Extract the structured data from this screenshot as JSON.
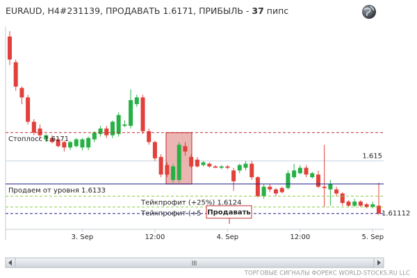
{
  "chart_data": {
    "type": "candlestick",
    "title_parts": [
      "EURAUD, H4#231139, ПРОДАВАТЬ 1.6171, ПРИБЫЛЬ - ",
      "37",
      " пипс"
    ],
    "categories": [
      null,
      null,
      null,
      null,
      null,
      null,
      null,
      null,
      null,
      null,
      null,
      null,
      "3. Sep",
      null,
      null,
      null,
      null,
      null,
      null,
      null,
      null,
      null,
      null,
      null,
      "12:00",
      null,
      null,
      null,
      null,
      null,
      null,
      null,
      null,
      null,
      null,
      null,
      "4. Sep",
      null,
      null,
      null,
      null,
      null,
      null,
      null,
      null,
      null,
      null,
      null,
      "12:00",
      null,
      null,
      null,
      null,
      null,
      null,
      null,
      null,
      null,
      null,
      null,
      "5. Sep",
      null
    ],
    "open": [
      1.6242,
      1.6223,
      1.6204,
      1.6197,
      1.6179,
      1.6174,
      1.6166,
      1.6167,
      1.6166,
      1.6164,
      1.616,
      1.6161,
      1.616,
      1.616,
      1.6166,
      1.617,
      1.6174,
      1.6169,
      1.617,
      1.6176,
      1.6176,
      1.6192,
      1.6197,
      1.6172,
      1.6164,
      1.6153,
      1.6147,
      1.6136,
      1.6136,
      1.6161,
      1.6153,
      1.6151,
      1.6147,
      1.6148,
      1.6146,
      1.6145,
      1.6146,
      1.6143,
      1.6143,
      1.6145,
      1.6148,
      1.6138,
      1.6124,
      1.6131,
      1.6129,
      1.613,
      1.613,
      1.6138,
      1.6141,
      1.6145,
      1.6138,
      1.614,
      1.6131,
      1.6129,
      1.6129,
      1.6126,
      1.612,
      1.6117,
      1.612,
      1.6118,
      1.6116,
      1.6117
    ],
    "high": [
      1.6246,
      1.6225,
      1.6205,
      1.6199,
      1.6181,
      1.6177,
      1.617,
      1.6169,
      1.6167,
      1.6165,
      1.6165,
      1.6167,
      1.6167,
      1.6168,
      1.6172,
      1.6176,
      1.6176,
      1.618,
      1.6186,
      1.618,
      1.6203,
      1.6199,
      1.6199,
      1.6174,
      1.6165,
      1.6155,
      1.6149,
      1.6148,
      1.6164,
      1.6164,
      1.6155,
      1.6153,
      1.615,
      1.6149,
      1.6147,
      1.6147,
      1.6147,
      1.6145,
      1.6148,
      1.615,
      1.615,
      1.6139,
      1.6133,
      1.6133,
      1.613,
      1.6131,
      1.6143,
      1.6148,
      1.6147,
      1.6147,
      1.6142,
      1.6143,
      1.6162,
      1.6136,
      1.6131,
      1.6127,
      1.6121,
      1.6122,
      1.6121,
      1.6119,
      1.612,
      1.6134
    ],
    "low": [
      1.6221,
      1.6202,
      1.6192,
      1.6177,
      1.6169,
      1.6166,
      1.6164,
      1.6163,
      1.616,
      1.6157,
      1.6158,
      1.616,
      1.6158,
      1.6158,
      1.6164,
      1.6168,
      1.6167,
      1.6167,
      1.6168,
      1.6175,
      1.6174,
      1.619,
      1.617,
      1.6162,
      1.615,
      1.6138,
      1.6138,
      1.6134,
      1.6134,
      1.6154,
      1.6145,
      1.6145,
      1.6146,
      1.6145,
      1.6145,
      1.6144,
      1.6144,
      1.6128,
      1.6141,
      1.6143,
      1.6136,
      1.6123,
      1.6122,
      1.6127,
      1.6124,
      1.6126,
      1.6129,
      1.6137,
      1.614,
      1.6138,
      1.6137,
      1.613,
      1.6116,
      1.6117,
      1.6124,
      1.6117,
      1.6116,
      1.6116,
      1.6116,
      1.6115,
      1.6115,
      1.611
    ],
    "close": [
      1.6225,
      1.6205,
      1.6197,
      1.6179,
      1.6171,
      1.6169,
      1.6169,
      1.6164,
      1.6161,
      1.616,
      1.6164,
      1.6166,
      1.6166,
      1.6167,
      1.6171,
      1.6174,
      1.6169,
      1.6179,
      1.6184,
      1.6177,
      1.6195,
      1.6197,
      1.6172,
      1.6164,
      1.6152,
      1.614,
      1.614,
      1.6146,
      1.6162,
      1.6157,
      1.6146,
      1.6146,
      1.6149,
      1.6146,
      1.6145,
      1.6146,
      1.6145,
      1.6135,
      1.6147,
      1.6148,
      1.6138,
      1.6124,
      1.6131,
      1.6129,
      1.6126,
      1.6127,
      1.6141,
      1.6143,
      1.6145,
      1.614,
      1.6141,
      1.6131,
      1.613,
      1.6133,
      1.6126,
      1.6119,
      1.6117,
      1.612,
      1.6117,
      1.6116,
      1.6118,
      1.61112
    ],
    "up_color": "#27b045",
    "down_color": "#e2403a",
    "ylim": [
      1.61,
      1.625
    ],
    "yticks": [
      1.615
    ],
    "grid": true,
    "levels": [
      {
        "label": "Стоплосс 1.6171",
        "value": 1.6171,
        "color": "#c0282d",
        "dashed": true
      },
      {
        "label": "Продаем от уровня 1.6133",
        "value": 1.6133,
        "color": "#1d1d8f",
        "dashed": false
      },
      {
        "label": "Тейкпрофит (+25%) 1.6124",
        "value": 1.6124,
        "color": "#86cc3c",
        "dashed": true
      },
      {
        "label": "Тейкпрофит (+5",
        "value": 1.6116,
        "color": "#86cc3c",
        "dashed": true
      }
    ],
    "last_price": 1.61112,
    "last_price_color": "#1d1d8f",
    "signal_label": "Продавать",
    "footer": "ТОРГОВЫЕ СИГНАЛЫ ФОРЕКС WORLD-STOCKS.RU LLC"
  }
}
